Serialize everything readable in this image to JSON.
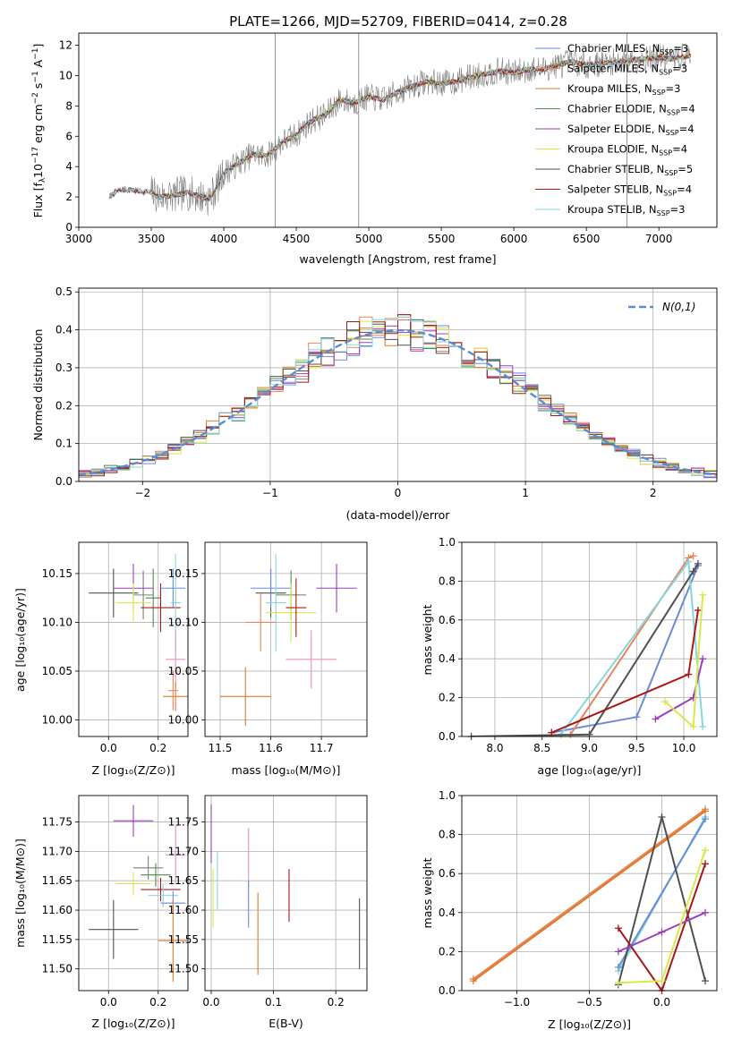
{
  "figure_title": "PLATE=1266, MJD=52709, FIBERID=0414, z=0.28",
  "colors": {
    "Chabrier MILES": "#6a8bd8",
    "Salpeter MILES": "#e8845a",
    "Kroupa MILES": "#e07b2a",
    "Chabrier ELODIE": "#4f8a4f",
    "Salpeter ELODIE": "#9b3fbf",
    "Kroupa ELODIE": "#d9e84a",
    "Chabrier STELIB": "#505050",
    "Salpeter STELIB": "#a81818",
    "Kroupa STELIB": "#86d6dc",
    "Chabrier STELIB cross": "#7f7f7f",
    "pink": "#e890c0",
    "normal": "#5b8ad8"
  },
  "chart_data": [
    {
      "id": "spectrum",
      "type": "line",
      "title": "",
      "xlabel": "wavelength [Angstrom, rest frame]",
      "ylabel": "Flux [f_λ10^-17 erg cm^-2 s^-1 A^-1]",
      "xlim": [
        3000,
        7400
      ],
      "ylim": [
        0,
        12.8
      ],
      "xticks": [
        3000,
        3500,
        4000,
        4500,
        5000,
        5500,
        6000,
        6500,
        7000
      ],
      "yticks": [
        0,
        2,
        4,
        6,
        8,
        10,
        12
      ],
      "grid": false,
      "legend_position": "top-right",
      "continuum": {
        "x": [
          3210,
          3250,
          3300,
          3400,
          3500,
          3550,
          3650,
          3750,
          3850,
          3900,
          3950,
          4000,
          4100,
          4200,
          4300,
          4400,
          4500,
          4600,
          4700,
          4800,
          4900,
          5000,
          5100,
          5200,
          5300,
          5400,
          5500,
          5600,
          5700,
          5800,
          5900,
          6000,
          6100,
          6200,
          6300,
          6400,
          6500,
          6600,
          6700,
          6800,
          6900,
          7000,
          7100,
          7200
        ],
        "y": [
          2.0,
          2.3,
          2.5,
          2.4,
          2.3,
          2.0,
          2.1,
          2.3,
          2.0,
          1.9,
          2.6,
          3.6,
          4.2,
          4.8,
          4.7,
          5.6,
          6.1,
          7.0,
          7.4,
          8.4,
          8.2,
          8.6,
          8.4,
          8.9,
          9.3,
          9.6,
          9.5,
          9.6,
          9.9,
          10.1,
          10.3,
          10.2,
          10.4,
          10.4,
          10.7,
          10.9,
          10.7,
          10.8,
          10.9,
          11.0,
          11.1,
          11.2,
          11.1,
          11.3
        ]
      },
      "series": [
        {
          "name": "Chabrier MILES, N_SSP=3",
          "color_key": "Chabrier MILES"
        },
        {
          "name": "Salpeter MILES, N_SSP=3",
          "color_key": "Salpeter MILES"
        },
        {
          "name": "Kroupa MILES, N_SSP=3",
          "color_key": "Kroupa MILES"
        },
        {
          "name": "Chabrier ELODIE, N_SSP=4",
          "color_key": "Chabrier ELODIE"
        },
        {
          "name": "Salpeter ELODIE, N_SSP=4",
          "color_key": "Salpeter ELODIE"
        },
        {
          "name": "Kroupa ELODIE, N_SSP=4",
          "color_key": "Kroupa ELODIE"
        },
        {
          "name": "Chabrier STELIB, N_SSP=5",
          "color_key": "Chabrier STELIB"
        },
        {
          "name": "Salpeter STELIB, N_SSP=4",
          "color_key": "Salpeter STELIB"
        },
        {
          "name": "Kroupa STELIB, N_SSP=3",
          "color_key": "Kroupa STELIB"
        }
      ],
      "legend_labels": [
        {
          "main": "Chabrier MILES, N",
          "sub": "SSP",
          "tail": "=3"
        },
        {
          "main": "Salpeter MILES, N",
          "sub": "SSP",
          "tail": "=3"
        },
        {
          "main": "Kroupa MILES, N",
          "sub": "SSP",
          "tail": "=3"
        },
        {
          "main": "Chabrier ELODIE, N",
          "sub": "SSP",
          "tail": "=4"
        },
        {
          "main": "Salpeter ELODIE, N",
          "sub": "SSP",
          "tail": "=4"
        },
        {
          "main": "Kroupa ELODIE, N",
          "sub": "SSP",
          "tail": "=4"
        },
        {
          "main": "Chabrier STELIB, N",
          "sub": "SSP",
          "tail": "=5"
        },
        {
          "main": "Salpeter STELIB, N",
          "sub": "SSP",
          "tail": "=4"
        },
        {
          "main": "Kroupa STELIB, N",
          "sub": "SSP",
          "tail": "=3"
        }
      ],
      "data_spikes_x": [
        4355,
        4930,
        6780
      ]
    },
    {
      "id": "residual-histogram",
      "type": "line",
      "xlabel": "(data-model)/error",
      "ylabel": "Normed distribution",
      "xlim": [
        -2.5,
        2.5
      ],
      "ylim": [
        0,
        0.51
      ],
      "xticks": [
        -2,
        -1,
        0,
        1,
        2
      ],
      "yticks": [
        0.0,
        0.1,
        0.2,
        0.3,
        0.4,
        0.5
      ],
      "grid": true,
      "legend": {
        "label": "N(0,1)",
        "position": "top-right"
      },
      "bin_width": 0.1,
      "normal_curve": {
        "mean": 0,
        "sigma": 1
      }
    },
    {
      "id": "age-vs-Z",
      "type": "scatter",
      "xlabel": "Z [log10(Z/Z⊙)]",
      "ylabel": "age [log10(age/yr)]",
      "xlim": [
        -0.12,
        0.32
      ],
      "ylim": [
        9.983,
        10.182
      ],
      "xticks": [
        0.0,
        0.2
      ],
      "yticks": [
        10.0,
        10.05,
        10.1,
        10.15
      ],
      "grid": true,
      "points": [
        {
          "x": 0.02,
          "xerr": 0.1,
          "y": 10.13,
          "yerr": 0.025,
          "color_key": "Chabrier STELIB"
        },
        {
          "x": 0.1,
          "xerr": 0.07,
          "y": 10.11,
          "yerr": 0.025,
          "color_key": "Salpeter ELODIE"
        },
        {
          "x": 0.21,
          "xerr": 0.08,
          "y": 10.115,
          "yerr": 0.025,
          "color_key": "Salpeter STELIB"
        }
      ]
    },
    {
      "id": "age-vs-mass",
      "type": "scatter",
      "xlabel": "mass [log10(M/M⊙)]",
      "ylabel": "",
      "xlim": [
        11.47,
        11.79
      ],
      "ylim": [
        9.983,
        10.182
      ],
      "xticks": [
        11.5,
        11.6,
        11.7
      ],
      "yticks": [
        10.0,
        10.05,
        10.1,
        10.15
      ],
      "grid": true
    },
    {
      "id": "mass-weight-vs-age",
      "type": "line",
      "xlabel": "age [log10(age/yr)]",
      "ylabel": "mass weight",
      "xlim": [
        7.65,
        10.35
      ],
      "ylim": [
        0,
        1.0
      ],
      "xticks": [
        8.0,
        8.5,
        9.0,
        9.5,
        10.0
      ],
      "yticks": [
        0.0,
        0.2,
        0.4,
        0.6,
        0.8,
        1.0
      ],
      "grid": true,
      "series": [
        {
          "color_key": "Chabrier MILES",
          "x": [
            8.6,
            9.5,
            10.15
          ],
          "y": [
            0.02,
            0.1,
            0.88
          ]
        },
        {
          "color_key": "Salpeter MILES",
          "x": [
            8.8,
            10.05,
            10.1
          ],
          "y": [
            0.01,
            0.92,
            0.93
          ]
        },
        {
          "color_key": "Kroupa STELIB",
          "x": [
            8.7,
            10.05,
            10.2
          ],
          "y": [
            0.01,
            0.9,
            0.05
          ]
        },
        {
          "color_key": "Chabrier STELIB",
          "x": [
            7.75,
            9.0,
            10.1,
            10.15
          ],
          "y": [
            0.0,
            0.01,
            0.85,
            0.89
          ]
        },
        {
          "color_key": "Salpeter STELIB",
          "x": [
            8.6,
            10.05,
            10.15
          ],
          "y": [
            0.02,
            0.32,
            0.65
          ]
        },
        {
          "color_key": "Salpeter ELODIE",
          "x": [
            9.7,
            10.1,
            10.2
          ],
          "y": [
            0.09,
            0.2,
            0.4
          ]
        },
        {
          "color_key": "Kroupa ELODIE",
          "x": [
            9.8,
            10.1,
            10.2
          ],
          "y": [
            0.18,
            0.05,
            0.73
          ]
        }
      ]
    },
    {
      "id": "mass-vs-Z",
      "type": "scatter",
      "xlabel": "Z [log10(Z/Z⊙)]",
      "ylabel": "mass [log10(M/M⊙)]",
      "xlim": [
        -0.12,
        0.32
      ],
      "ylim": [
        11.463,
        11.795
      ],
      "xticks": [
        0.0,
        0.2
      ],
      "yticks": [
        11.5,
        11.55,
        11.6,
        11.65,
        11.7,
        11.75
      ],
      "grid": true
    },
    {
      "id": "mass-vs-ebv",
      "type": "scatter",
      "xlabel": "E(B-V)",
      "ylabel": "",
      "xlim": [
        -0.01,
        0.25
      ],
      "ylim": [
        11.463,
        11.795
      ],
      "xticks": [
        0.0,
        0.1,
        0.2
      ],
      "yticks": [
        11.5,
        11.55,
        11.6,
        11.65,
        11.7,
        11.75
      ],
      "grid": true
    },
    {
      "id": "mass-weight-vs-Z",
      "type": "line",
      "xlabel": "Z [log10(Z/Z⊙)]",
      "ylabel": "mass weight",
      "xlim": [
        -1.38,
        0.38
      ],
      "ylim": [
        0,
        1.0
      ],
      "xticks": [
        -1.0,
        -0.5,
        0.0
      ],
      "yticks": [
        0.0,
        0.2,
        0.4,
        0.6,
        0.8,
        1.0
      ],
      "grid": true,
      "series": [
        {
          "color_key": "Salpeter MILES",
          "x": [
            -1.3,
            0.3
          ],
          "y": [
            0.06,
            0.93
          ]
        },
        {
          "color_key": "Kroupa MILES",
          "x": [
            -1.3,
            0.3
          ],
          "y": [
            0.05,
            0.92
          ]
        },
        {
          "color_key": "Kroupa STELIB",
          "x": [
            -0.3,
            0.3
          ],
          "y": [
            0.1,
            0.89
          ]
        },
        {
          "color_key": "Chabrier MILES",
          "x": [
            -0.3,
            0.3
          ],
          "y": [
            0.12,
            0.88
          ]
        },
        {
          "color_key": "Chabrier STELIB",
          "x": [
            -0.3,
            0.0,
            0.3
          ],
          "y": [
            0.03,
            0.89,
            0.05
          ]
        },
        {
          "color_key": "Salpeter STELIB",
          "x": [
            -0.3,
            0.0,
            0.3
          ],
          "y": [
            0.32,
            0.0,
            0.65
          ]
        },
        {
          "color_key": "Salpeter ELODIE",
          "x": [
            -0.3,
            0.0,
            0.3
          ],
          "y": [
            0.2,
            0.3,
            0.4
          ]
        },
        {
          "color_key": "Kroupa ELODIE",
          "x": [
            -0.3,
            0.0,
            0.3
          ],
          "y": [
            0.04,
            0.05,
            0.72
          ]
        }
      ]
    }
  ]
}
